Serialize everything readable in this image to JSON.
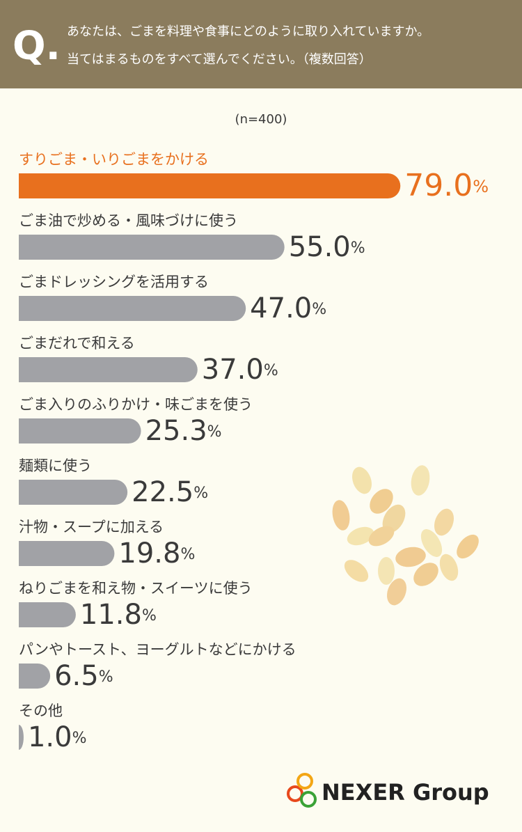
{
  "header": {
    "mark": "Q.",
    "lines": [
      "あなたは、ごまを料理や食事にどのように取り入れていますか。",
      "当てはまるものをすべて選んでください。（複数回答）"
    ]
  },
  "chart_data": {
    "type": "bar",
    "orientation": "horizontal",
    "subtitle": "(n=400)",
    "categories": [
      "すりごま・いりごまをかける",
      "ごま油で炒める・風味づけに使う",
      "ごまドレッシングを活用する",
      "ごまだれで和える",
      "ごま入りのふりかけ・味ごまを使う",
      "麺類に使う",
      "汁物・スープに加える",
      "ねりごまを和え物・スイーツに使う",
      "パンやトースト、ヨーグルトなどにかける",
      "その他"
    ],
    "values": [
      79.0,
      55.0,
      47.0,
      37.0,
      25.3,
      22.5,
      19.8,
      11.8,
      6.5,
      1.0
    ],
    "value_labels": [
      "79.0%",
      "55.0%",
      "47.0%",
      "37.0%",
      "25.3%",
      "22.5%",
      "19.8%",
      "11.8%",
      "6.5%",
      "1.0%"
    ],
    "colors": [
      "#e8701e",
      "#a1a2a6",
      "#a1a2a6",
      "#a1a2a6",
      "#a1a2a6",
      "#a1a2a6",
      "#a1a2a6",
      "#a1a2a6",
      "#a1a2a6",
      "#a1a2a6"
    ],
    "xlim": [
      0,
      100
    ]
  },
  "footer": {
    "logo": "NEXER Group"
  }
}
